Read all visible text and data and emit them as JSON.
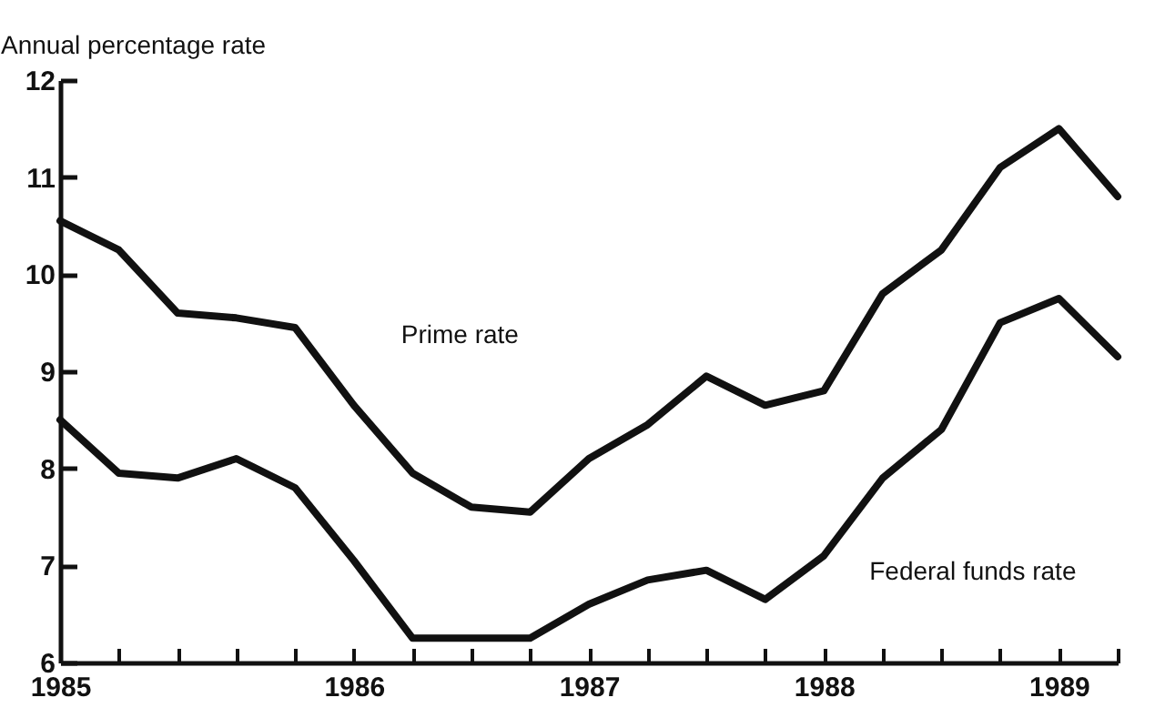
{
  "chart_data": {
    "type": "line",
    "ylabel": "Annual percentage rate",
    "categories": [
      "1985",
      null,
      null,
      null,
      null,
      "1986",
      null,
      null,
      null,
      "1987",
      null,
      null,
      null,
      "1988",
      null,
      null,
      null,
      "1989",
      null
    ],
    "series": [
      {
        "name": "Prime rate",
        "color": "#111111",
        "values": [
          10.55,
          10.25,
          9.6,
          9.55,
          9.45,
          8.65,
          7.95,
          7.6,
          7.55,
          8.1,
          8.45,
          8.95,
          8.65,
          8.8,
          9.8,
          10.25,
          11.1,
          11.5,
          10.8
        ]
      },
      {
        "name": "Federal funds rate",
        "color": "#111111",
        "values": [
          8.5,
          7.95,
          7.9,
          8.1,
          7.8,
          7.05,
          6.25,
          6.25,
          6.25,
          6.6,
          6.85,
          6.95,
          6.65,
          7.1,
          7.9,
          8.4,
          9.5,
          9.75,
          9.15
        ]
      }
    ],
    "ylim": [
      6,
      12
    ],
    "yticks": [
      6,
      7,
      8,
      9,
      10,
      11,
      12
    ],
    "grid": false,
    "marker": "none",
    "line_style": "solid"
  }
}
